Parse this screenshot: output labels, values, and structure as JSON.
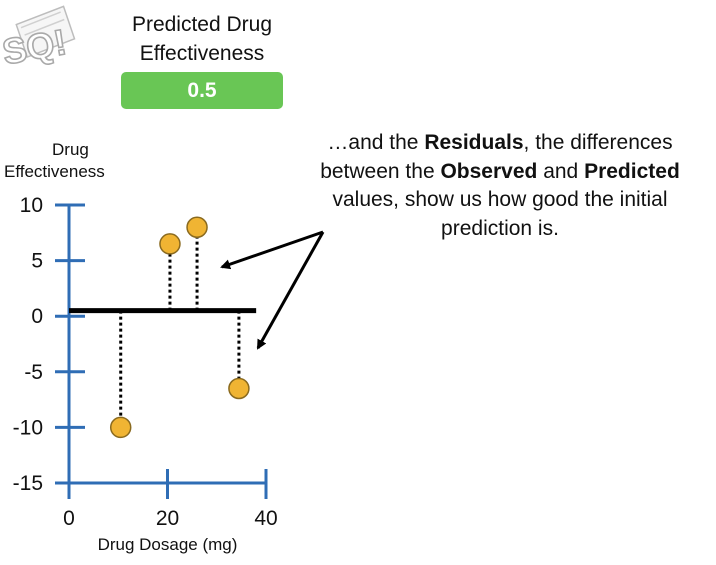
{
  "colors": {
    "axis": "#2f6db5",
    "point_fill": "#f0b433",
    "point_stroke": "#8a6a1f",
    "badge": "#69c655",
    "line": "#000000"
  },
  "logo": {
    "icon": "statquest-logo",
    "text": "SQ!"
  },
  "prediction": {
    "title_line1": "Predicted Drug",
    "title_line2": "Effectiveness",
    "value": "0.5"
  },
  "caption": {
    "part1": "…and the ",
    "bold1": "Residuals",
    "part2": ", the differences between the ",
    "bold2": "Observed",
    "part3": " and ",
    "bold3": "Predicted",
    "part4": " values, show us how good the initial prediction is."
  },
  "chart_data": {
    "type": "scatter",
    "ylabel_line1": "Drug",
    "ylabel_line2": "Effectiveness",
    "xlabel": "Drug Dosage (mg)",
    "xlim": [
      0,
      40
    ],
    "ylim": [
      -15,
      10
    ],
    "xticks": [
      0,
      20,
      40
    ],
    "xtick_labels": [
      "0",
      "20",
      "40"
    ],
    "yticks": [
      10,
      5,
      0,
      -5,
      -10,
      -15
    ],
    "ytick_labels": [
      "10",
      "5",
      "0",
      "-5",
      "-10",
      "-15"
    ],
    "prediction_line": {
      "y": 0.5,
      "x_start": 0,
      "x_end": 38
    },
    "points": [
      {
        "x": 10.5,
        "y": -10
      },
      {
        "x": 20.5,
        "y": 6.5
      },
      {
        "x": 26,
        "y": 8
      },
      {
        "x": 34.5,
        "y": -6.5
      }
    ],
    "residual_style": "dotted",
    "grid": false,
    "legend": "none"
  }
}
